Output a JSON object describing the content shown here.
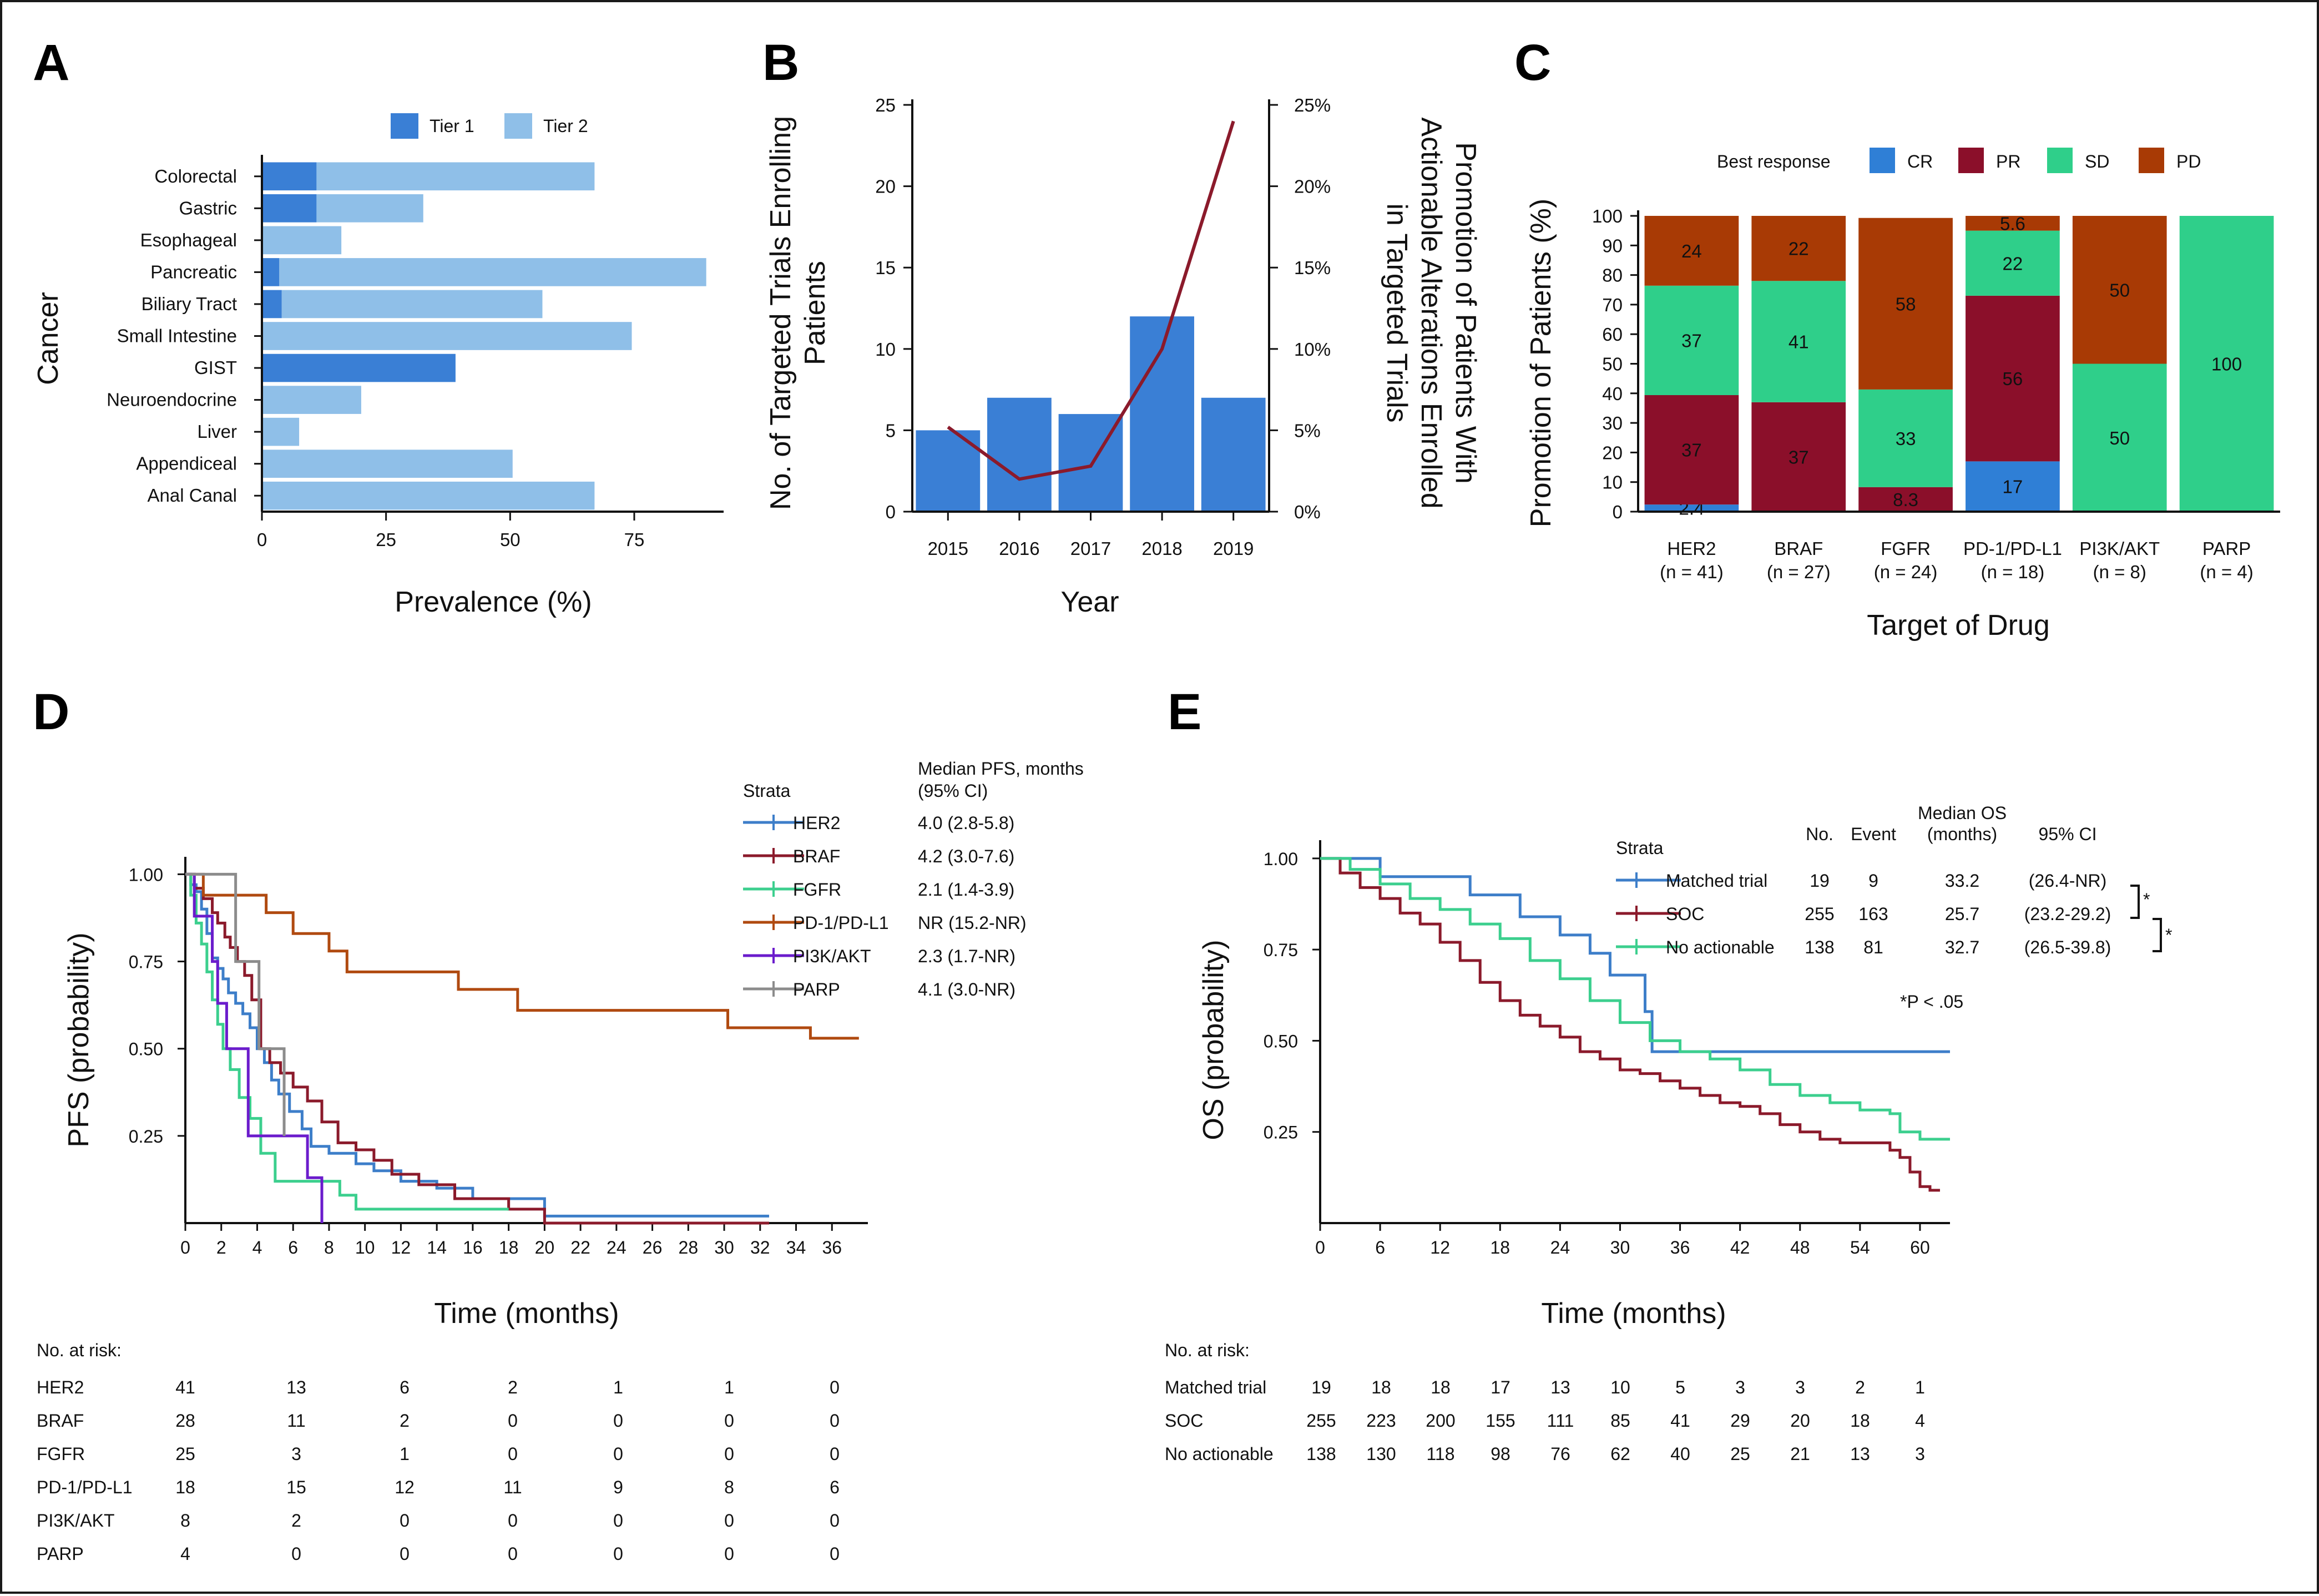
{
  "figure_title": "",
  "colors": {
    "tier1": "#3a7fd5",
    "tier2": "#8fbfe8",
    "bar_b": "#3a7fd5",
    "line_b": "#8b1a2b",
    "CR": "#2f7fd6",
    "PR": "#8b0f2a",
    "SD": "#2fcf8a",
    "PD": "#a83a05",
    "HER2": "#3d7ec9",
    "BRAF": "#8b1a2b",
    "FGFR": "#3ccf8e",
    "PD-1/PD-L1": "#b04a10",
    "PI3K/AKT": "#6b1ccc",
    "PARP": "#8c8c8c",
    "Matched trial": "#3d7ec9",
    "SOC": "#8b1a2b",
    "No actionable": "#3ccf8e"
  },
  "chart_data": [
    {
      "panel": "A",
      "type": "bar",
      "orientation": "horizontal",
      "stacked": true,
      "legend": [
        "Tier 1",
        "Tier 2"
      ],
      "legend_position": "top",
      "categories": [
        "Colorectal",
        "Gastric",
        "Esophageal",
        "Pancreatic",
        "Biliary Tract",
        "Small Intestine",
        "GIST",
        "Neuroendocrine",
        "Liver",
        "Appendiceal",
        "Anal Canal"
      ],
      "series": [
        {
          "name": "Tier 1",
          "values": [
            11,
            11,
            0,
            3.5,
            4,
            0,
            39,
            0,
            0,
            0,
            0
          ]
        },
        {
          "name": "Tier 2",
          "values": [
            56,
            21.5,
            16,
            86,
            52.5,
            74.5,
            0,
            20,
            7.5,
            50.5,
            67
          ]
        }
      ],
      "xlabel": "Prevalence (%)",
      "ylabel": "Cancer",
      "xlim": [
        0,
        93
      ],
      "xticks": [
        "0",
        "25",
        "50",
        "75"
      ],
      "grid": false
    },
    {
      "panel": "B",
      "type": "bar+line",
      "categories": [
        "2015",
        "2016",
        "2017",
        "2018",
        "2019"
      ],
      "bar_values": [
        5,
        7,
        6,
        12,
        7
      ],
      "line_values": [
        5.2,
        2,
        2.8,
        10,
        24
      ],
      "xlabel": "Year",
      "ylabel": "No. of Targeted Trials Enrolling Patients",
      "ylabel_right": "Promotion of Patients With Actionable Alterations Enrolled in Targeted Trials",
      "ylim": [
        0,
        25
      ],
      "ylim_right": [
        0,
        25
      ],
      "yticks": [
        "0",
        "5",
        "10",
        "15",
        "20",
        "25"
      ],
      "yticks_right": [
        "0%",
        "5%",
        "10%",
        "15%",
        "20%",
        "25%"
      ],
      "grid": false
    },
    {
      "panel": "C",
      "type": "bar",
      "stacked": true,
      "legend_title": "Best response",
      "legend": [
        "CR",
        "PR",
        "SD",
        "PD"
      ],
      "legend_position": "top",
      "categories": [
        "HER2",
        "BRAF",
        "FGFR",
        "PD-1/PD-L1",
        "PI3K/AKT",
        "PARP"
      ],
      "category_n": [
        "(n = 41)",
        "(n = 27)",
        "(n = 24)",
        "(n = 18)",
        "(n = 8)",
        "(n = 4)"
      ],
      "series": [
        {
          "name": "CR",
          "values": [
            2.4,
            0,
            0,
            17,
            0,
            0
          ],
          "labels": [
            "2.4",
            "",
            "",
            "17",
            "",
            ""
          ]
        },
        {
          "name": "PR",
          "values": [
            37,
            37,
            8.3,
            56,
            0,
            0
          ],
          "labels": [
            "37",
            "37",
            "8.3",
            "56",
            "",
            ""
          ]
        },
        {
          "name": "SD",
          "values": [
            37,
            41,
            33,
            22,
            50,
            100
          ],
          "labels": [
            "37",
            "41",
            "33",
            "22",
            "50",
            "100"
          ]
        },
        {
          "name": "PD",
          "values": [
            24,
            22,
            58,
            5.6,
            50,
            0
          ],
          "labels": [
            "24",
            "22",
            "58",
            "5.6",
            "50",
            ""
          ]
        }
      ],
      "xlabel": "Target of Drug",
      "ylabel": "Promotion of Patients (%)",
      "ylim": [
        0,
        100
      ],
      "yticks": [
        "0",
        "10",
        "20",
        "30",
        "40",
        "50",
        "60",
        "70",
        "80",
        "90",
        "100"
      ],
      "grid": false
    },
    {
      "panel": "D",
      "type": "line",
      "subtype": "kaplan-meier step",
      "xlabel": "Time (months)",
      "ylabel": "PFS (probability)",
      "xlim": [
        0,
        38
      ],
      "ylim": [
        0,
        1
      ],
      "xticks": [
        "0",
        "2",
        "4",
        "6",
        "8",
        "10",
        "12",
        "14",
        "16",
        "18",
        "20",
        "22",
        "24",
        "26",
        "28",
        "30",
        "32",
        "34",
        "36"
      ],
      "yticks": [
        "0.25",
        "0.50",
        "0.75",
        "1.00"
      ],
      "legend_title": "Strata",
      "legend_col2_title": "Median PFS, months",
      "legend_col2_sub": "(95% CI)",
      "series": [
        {
          "name": "HER2",
          "median": "4.0 (2.8-5.8)",
          "x": [
            0,
            0.3,
            0.6,
            0.9,
            1.2,
            1.5,
            1.8,
            2.1,
            2.4,
            2.8,
            3.2,
            3.6,
            4.0,
            4.4,
            4.8,
            5.2,
            5.8,
            6.5,
            7.0,
            8.0,
            9.5,
            10.5,
            12.0,
            14.0,
            16.0,
            20.0,
            26.0,
            32.5
          ],
          "y": [
            1,
            0.97,
            0.95,
            0.9,
            0.83,
            0.76,
            0.73,
            0.7,
            0.66,
            0.63,
            0.6,
            0.56,
            0.5,
            0.46,
            0.41,
            0.37,
            0.32,
            0.27,
            0.22,
            0.2,
            0.17,
            0.15,
            0.12,
            0.1,
            0.07,
            0.02,
            0.02,
            0.02
          ]
        },
        {
          "name": "BRAF",
          "median": "4.2 (3.0-7.6)",
          "x": [
            0,
            0.5,
            1.0,
            1.5,
            1.8,
            2.2,
            2.5,
            2.9,
            3.3,
            3.7,
            4.2,
            4.7,
            5.3,
            6.0,
            6.8,
            7.6,
            8.5,
            9.5,
            10.5,
            11.5,
            13.0,
            15.0,
            18.0,
            20.0,
            26.0,
            32.5
          ],
          "y": [
            1,
            0.96,
            0.93,
            0.89,
            0.86,
            0.82,
            0.79,
            0.75,
            0.71,
            0.64,
            0.5,
            0.46,
            0.43,
            0.39,
            0.35,
            0.29,
            0.23,
            0.21,
            0.18,
            0.14,
            0.11,
            0.07,
            0.04,
            0.0,
            0.0,
            0.0
          ]
        },
        {
          "name": "FGFR",
          "median": "2.1 (1.4-3.9)",
          "x": [
            0,
            0.3,
            0.6,
            0.9,
            1.2,
            1.5,
            1.8,
            2.1,
            2.5,
            3.0,
            3.6,
            4.2,
            5.0,
            5.8,
            7.6,
            8.6,
            9.5,
            12.0,
            14.5,
            18.0
          ],
          "y": [
            1,
            0.94,
            0.86,
            0.8,
            0.72,
            0.64,
            0.57,
            0.5,
            0.44,
            0.36,
            0.3,
            0.2,
            0.12,
            0.12,
            0.12,
            0.08,
            0.04,
            0.04,
            0.04,
            0.04
          ]
        },
        {
          "name": "PD-1/PD-L1",
          "median": "NR (15.2-NR)",
          "x": [
            0,
            1.0,
            1.5,
            2.0,
            3.0,
            4.5,
            6.0,
            8.0,
            9.0,
            11.0,
            15.2,
            18.5,
            20.0,
            23.5,
            26.8,
            30.2,
            34.8,
            37.5
          ],
          "y": [
            1,
            0.94,
            0.94,
            0.94,
            0.94,
            0.89,
            0.83,
            0.78,
            0.72,
            0.72,
            0.67,
            0.61,
            0.61,
            0.61,
            0.61,
            0.56,
            0.53,
            0.53
          ]
        },
        {
          "name": "PI3K/AKT",
          "median": "2.3 (1.7-NR)",
          "x": [
            0,
            0.5,
            1.0,
            1.5,
            1.8,
            2.3,
            3.5,
            5.5,
            6.8,
            7.6
          ],
          "y": [
            1,
            0.88,
            0.88,
            0.75,
            0.63,
            0.5,
            0.25,
            0.25,
            0.13,
            0.0
          ]
        },
        {
          "name": "PARP",
          "median": "4.1 (3.0-NR)",
          "x": [
            0,
            2.8,
            3.3,
            4.1,
            5.5
          ],
          "y": [
            1,
            0.75,
            0.75,
            0.5,
            0.25
          ]
        }
      ],
      "risk_table": {
        "title": "No. at risk:",
        "times": [
          "0",
          "6",
          "12",
          "18",
          "24",
          "30",
          "36"
        ],
        "rows": [
          {
            "name": "HER2",
            "values": [
              "41",
              "13",
              "6",
              "2",
              "1",
              "1",
              "0"
            ]
          },
          {
            "name": "BRAF",
            "values": [
              "28",
              "11",
              "2",
              "0",
              "0",
              "0",
              "0"
            ]
          },
          {
            "name": "FGFR",
            "values": [
              "25",
              "3",
              "1",
              "0",
              "0",
              "0",
              "0"
            ]
          },
          {
            "name": "PD-1/PD-L1",
            "values": [
              "18",
              "15",
              "12",
              "11",
              "9",
              "8",
              "6"
            ]
          },
          {
            "name": "PI3K/AKT",
            "values": [
              "8",
              "2",
              "0",
              "0",
              "0",
              "0",
              "0"
            ]
          },
          {
            "name": "PARP",
            "values": [
              "4",
              "0",
              "0",
              "0",
              "0",
              "0",
              "0"
            ]
          }
        ]
      }
    },
    {
      "panel": "E",
      "type": "line",
      "subtype": "kaplan-meier step",
      "xlabel": "Time (months)",
      "ylabel": "OS (probability)",
      "xlim": [
        0,
        63
      ],
      "ylim": [
        0,
        1
      ],
      "xticks": [
        "0",
        "6",
        "12",
        "18",
        "24",
        "30",
        "36",
        "42",
        "48",
        "54",
        "60"
      ],
      "yticks": [
        "0.25",
        "0.50",
        "0.75",
        "1.00"
      ],
      "legend_title": "Strata",
      "legend_headers": {
        "no": "No.",
        "event": "Event",
        "median": "Median OS",
        "median_sub": "(months)",
        "ci": "95% CI"
      },
      "significance_note": "*P < .05",
      "series": [
        {
          "name": "Matched trial",
          "no": "19",
          "event": "9",
          "median": "33.2",
          "ci": "(26.4-NR)",
          "x": [
            0,
            6.0,
            15.0,
            20.0,
            24.0,
            27.0,
            29.0,
            32.5,
            33.2,
            35.0,
            40.0,
            50.0,
            60.0,
            63.0
          ],
          "y": [
            1,
            0.95,
            0.9,
            0.84,
            0.79,
            0.74,
            0.68,
            0.58,
            0.47,
            0.47,
            0.47,
            0.47,
            0.47,
            0.47
          ]
        },
        {
          "name": "SOC",
          "no": "255",
          "event": "163",
          "median": "25.7",
          "ci": "(23.2-29.2)",
          "x": [
            0,
            2,
            4,
            6,
            8,
            10,
            12,
            14,
            16,
            18,
            20,
            22,
            24,
            26,
            28,
            30,
            32,
            34,
            36,
            38,
            40,
            42,
            44,
            46,
            48,
            50,
            52,
            54,
            56,
            57,
            58,
            59,
            60,
            61,
            62
          ],
          "y": [
            1,
            0.96,
            0.92,
            0.89,
            0.85,
            0.82,
            0.77,
            0.72,
            0.66,
            0.61,
            0.57,
            0.54,
            0.51,
            0.47,
            0.45,
            0.42,
            0.41,
            0.39,
            0.37,
            0.35,
            0.33,
            0.32,
            0.3,
            0.27,
            0.25,
            0.23,
            0.22,
            0.22,
            0.22,
            0.2,
            0.18,
            0.14,
            0.1,
            0.09,
            0.09
          ]
        },
        {
          "name": "No actionable",
          "no": "138",
          "event": "81",
          "median": "32.7",
          "ci": "(26.5-39.8)",
          "x": [
            0,
            3,
            6,
            9,
            12,
            15,
            18,
            21,
            24,
            27,
            30,
            33,
            36,
            39,
            42,
            45,
            48,
            51,
            54,
            57,
            58,
            60,
            63
          ],
          "y": [
            1,
            0.97,
            0.93,
            0.89,
            0.86,
            0.82,
            0.78,
            0.72,
            0.67,
            0.61,
            0.55,
            0.5,
            0.47,
            0.45,
            0.42,
            0.38,
            0.35,
            0.33,
            0.31,
            0.3,
            0.25,
            0.23,
            0.23
          ]
        }
      ],
      "risk_table": {
        "title": "No. at risk:",
        "times": [
          "0",
          "6",
          "12",
          "18",
          "24",
          "30",
          "36",
          "42",
          "48",
          "54",
          "60"
        ],
        "rows": [
          {
            "name": "Matched trial",
            "values": [
              "19",
              "18",
              "18",
              "17",
              "13",
              "10",
              "5",
              "3",
              "3",
              "2",
              "1"
            ]
          },
          {
            "name": "SOC",
            "values": [
              "255",
              "223",
              "200",
              "155",
              "111",
              "85",
              "41",
              "29",
              "20",
              "18",
              "4"
            ]
          },
          {
            "name": "No actionable",
            "values": [
              "138",
              "130",
              "118",
              "98",
              "76",
              "62",
              "40",
              "25",
              "21",
              "13",
              "3"
            ]
          }
        ]
      }
    }
  ]
}
